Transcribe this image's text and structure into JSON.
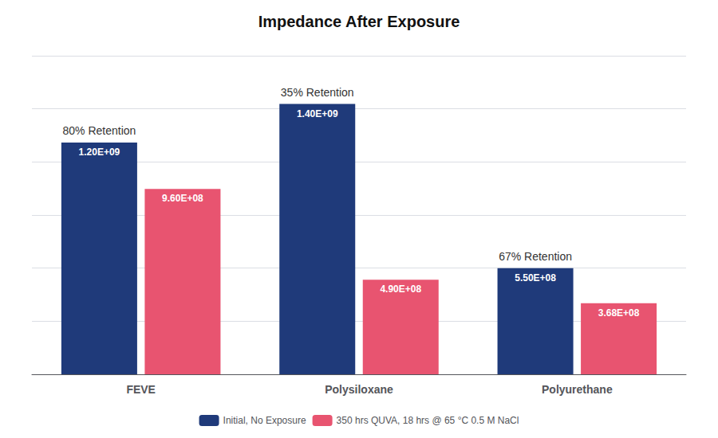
{
  "chart_data": {
    "type": "bar",
    "title": "Impedance After Exposure",
    "categories": [
      "FEVE",
      "Polysiloxane",
      "Polyurethane"
    ],
    "series": [
      {
        "name": "Initial, No Exposure",
        "color": "#1F3A7A",
        "values": [
          1200000000,
          1400000000,
          550000000
        ],
        "value_labels": [
          "1.20E+09",
          "1.40E+09",
          "5.50E+08"
        ]
      },
      {
        "name": "350 hrs QUVA, 18 hrs @ 65 °C 0.5 M NaCl",
        "color": "#E85470",
        "values": [
          960000000,
          490000000,
          368000000
        ],
        "value_labels": [
          "9.60E+08",
          "4.90E+08",
          "3.68E+08"
        ]
      }
    ],
    "annotations": [
      "80% Retention",
      "35% Retention",
      "67% Retention"
    ],
    "ylim": [
      0,
      1650000000
    ],
    "yticks": [
      0,
      275000000,
      550000000,
      825000000,
      1100000000,
      1375000000,
      1650000000
    ],
    "grid": true,
    "tick_labels": "x",
    "data_labels": true,
    "legend": "bottom"
  }
}
